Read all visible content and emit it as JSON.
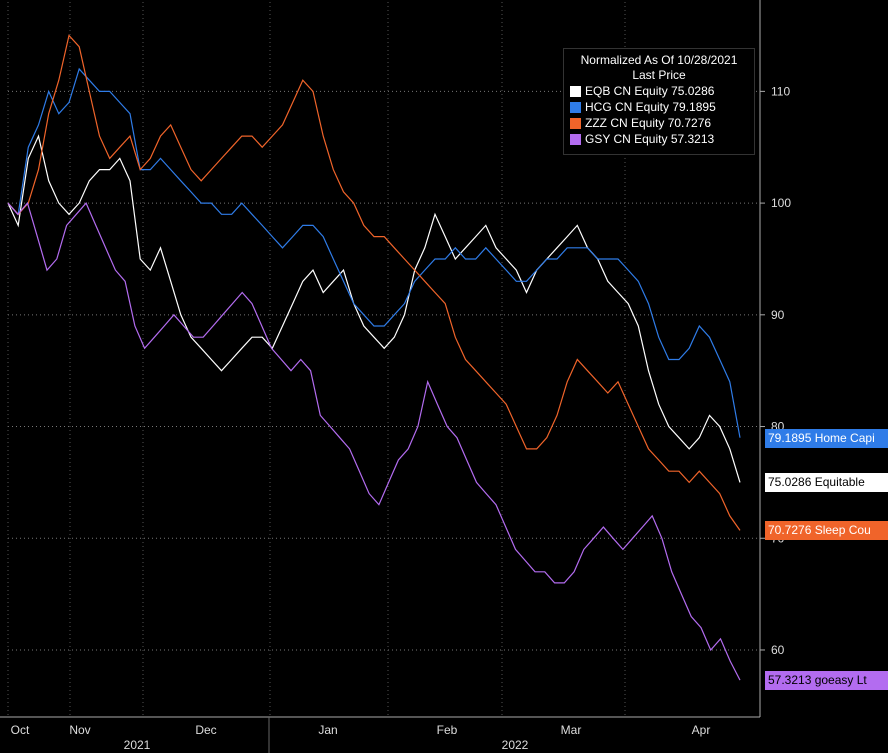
{
  "chart_data": {
    "type": "line",
    "ylim": [
      54,
      118
    ],
    "yticks": [
      60,
      70,
      80,
      90,
      100,
      110
    ],
    "months": [
      "Oct",
      "Nov",
      "Dec",
      "Jan",
      "Feb",
      "Mar",
      "Apr"
    ],
    "years": [
      "2021",
      "2022"
    ],
    "legend": {
      "title_line1": "Normalized As Of 10/28/2021",
      "title_line2": "Last Price",
      "placement": "top-right"
    },
    "series": [
      {
        "name": "EQB CN Equity",
        "last": "75.0286",
        "tag": "75.0286 Equitable",
        "color": "#ffffff",
        "tag_text_color": "#000000",
        "values": [
          100,
          98,
          104,
          106,
          102,
          100,
          99,
          100,
          102,
          103,
          103,
          104,
          102,
          95,
          94,
          96,
          93,
          90,
          88,
          87,
          86,
          85,
          86,
          87,
          88,
          88,
          87,
          89,
          91,
          93,
          94,
          92,
          93,
          94,
          91,
          89,
          88,
          87,
          88,
          90,
          94,
          96,
          99,
          97,
          95,
          96,
          97,
          98,
          96,
          95,
          94,
          92,
          94,
          95,
          96,
          97,
          98,
          96,
          95,
          93,
          92,
          91,
          89,
          85,
          82,
          80,
          79,
          78,
          79,
          81,
          80,
          78,
          75
        ]
      },
      {
        "name": "HCG CN Equity",
        "last": "79.1895",
        "tag": "79.1895 Home Capi",
        "color": "#2f7ce8",
        "tag_text_color": "#ffffff",
        "values": [
          100,
          99,
          105,
          107,
          110,
          108,
          109,
          112,
          111,
          110,
          110,
          109,
          108,
          103,
          103,
          104,
          103,
          102,
          101,
          100,
          100,
          99,
          99,
          100,
          99,
          98,
          97,
          96,
          97,
          98,
          98,
          97,
          95,
          93,
          91,
          90,
          89,
          89,
          90,
          91,
          93,
          94,
          95,
          95,
          96,
          95,
          95,
          96,
          95,
          94,
          93,
          93,
          94,
          95,
          95,
          96,
          96,
          96,
          95,
          95,
          95,
          94,
          93,
          91,
          88,
          86,
          86,
          87,
          89,
          88,
          86,
          84,
          79
        ]
      },
      {
        "name": "ZZZ CN Equity",
        "last": "70.7276",
        "tag": "70.7276 Sleep Cou",
        "color": "#f0642a",
        "tag_text_color": "#ffffff",
        "values": [
          100,
          99,
          100,
          103,
          108,
          111,
          115,
          114,
          110,
          106,
          104,
          105,
          106,
          103,
          104,
          106,
          107,
          105,
          103,
          102,
          103,
          104,
          105,
          106,
          106,
          105,
          106,
          107,
          109,
          111,
          110,
          106,
          103,
          101,
          100,
          98,
          97,
          97,
          96,
          95,
          94,
          93,
          92,
          91,
          88,
          86,
          85,
          84,
          83,
          82,
          80,
          78,
          78,
          79,
          81,
          84,
          86,
          85,
          84,
          83,
          84,
          82,
          80,
          78,
          77,
          76,
          76,
          75,
          76,
          75,
          74,
          72,
          70.7
        ]
      },
      {
        "name": "GSY CN Equity",
        "last": "57.3213",
        "tag": "57.3213 goeasy Lt",
        "color": "#b36cf0",
        "tag_text_color": "#000000",
        "values": [
          100,
          99,
          100,
          97,
          94,
          95,
          98,
          99,
          100,
          98,
          96,
          94,
          93,
          89,
          87,
          88,
          89,
          90,
          89,
          88,
          88,
          89,
          90,
          91,
          92,
          91,
          89,
          87,
          86,
          85,
          86,
          85,
          81,
          80,
          79,
          78,
          76,
          74,
          73,
          75,
          77,
          78,
          80,
          84,
          82,
          80,
          79,
          77,
          75,
          74,
          73,
          71,
          69,
          68,
          67,
          67,
          66,
          66,
          67,
          69,
          70,
          71,
          70,
          69,
          70,
          71,
          72,
          70,
          67,
          65,
          63,
          62,
          60,
          61,
          59,
          57.3
        ]
      }
    ]
  }
}
